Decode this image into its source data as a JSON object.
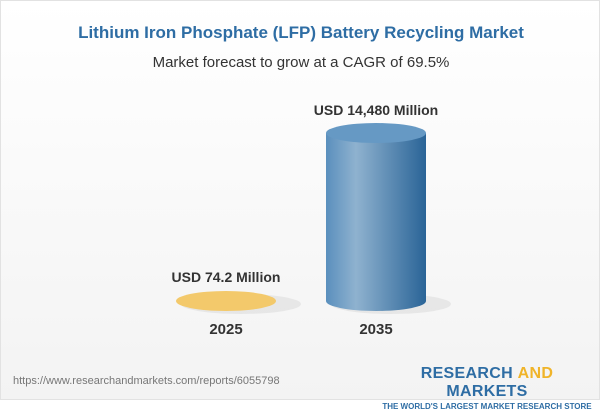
{
  "chart_data": {
    "type": "bar",
    "title": "Lithium Iron Phosphate (LFP) Battery Recycling Market",
    "subtitle": "Market forecast to grow at a CAGR of 69.5%",
    "categories": [
      "2025",
      "2035"
    ],
    "values": [
      74.2,
      14480
    ],
    "unit": "USD Million",
    "data_labels": [
      "USD 74.2 Million",
      "USD 14,480 Million"
    ],
    "colors": [
      "#f3c96b",
      "#3f7db0"
    ]
  },
  "footer": {
    "url": "https://www.researchandmarkets.com/reports/6055798",
    "logo_part1": "RESEARCH ",
    "logo_part2": "AND",
    "logo_part3": " MARKETS",
    "tagline": "THE WORLD'S LARGEST MARKET RESEARCH STORE"
  }
}
